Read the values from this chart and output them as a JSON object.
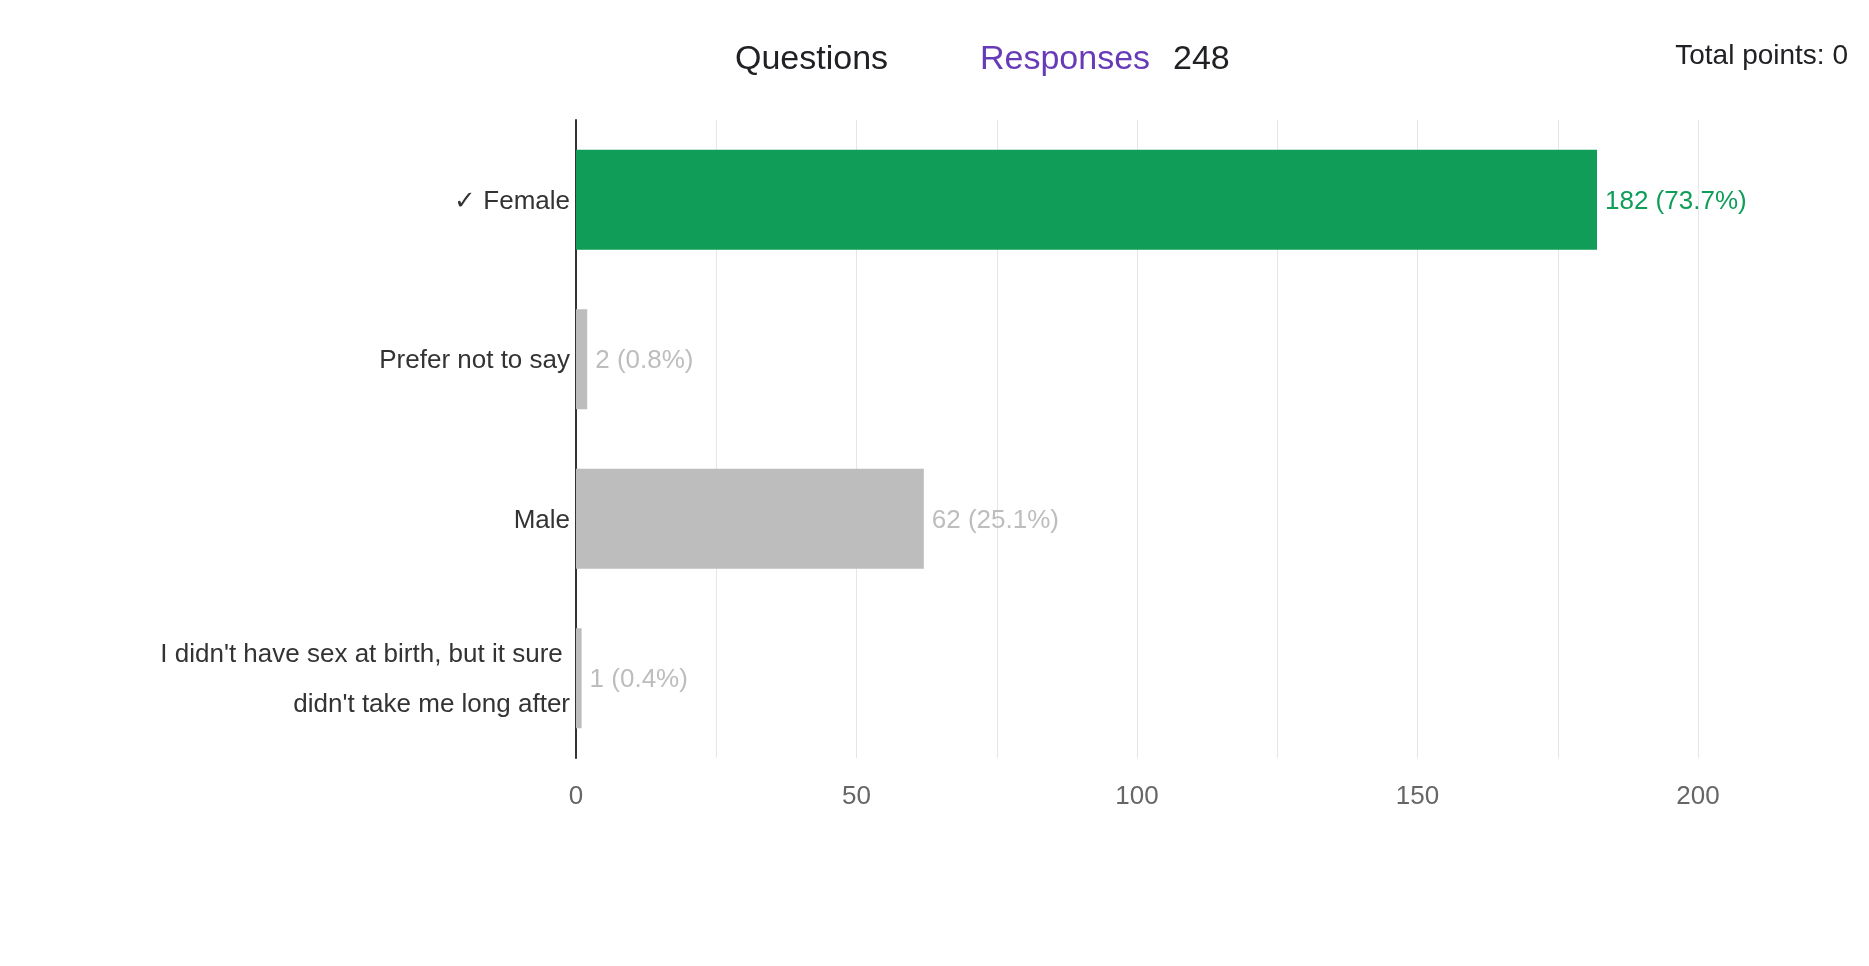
{
  "chart_data": {
    "type": "bar",
    "orientation": "horizontal",
    "annotations": [
      "Questions",
      "Responses",
      "248",
      "Total points: 0"
    ],
    "categories": [
      "✓ Female",
      "Prefer not to say",
      "Male",
      "I didn't have sex at birth, but it sure didn't take me long after"
    ],
    "values": [
      182,
      2,
      62,
      1
    ],
    "colors": [
      "#0f9d58",
      "#bdbdbd",
      "#bdbdbd",
      "#bdbdbd"
    ],
    "value_labels": [
      "182 (73.7%)",
      "2 (0.8%)",
      "62 (25.1%)",
      "1 (0.4%)"
    ],
    "xlim": [
      0,
      200
    ],
    "xticks": [
      0,
      {
        "value": 25,
        "label": null
      },
      50,
      {
        "value": 75,
        "label": null
      },
      100,
      {
        "value": 125,
        "label": null
      },
      150,
      {
        "value": 175,
        "label": null
      },
      200
    ],
    "grid": "x"
  }
}
